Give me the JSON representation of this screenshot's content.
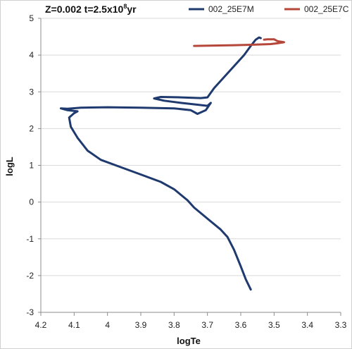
{
  "chart_data": {
    "type": "line",
    "title_main": "Z=0.002 t=2.5x10",
    "title_sup": "8",
    "title_tail": "yr",
    "xlabel": "logTe",
    "ylabel": "logL",
    "xlim": [
      4.2,
      3.3
    ],
    "ylim": [
      -3,
      5
    ],
    "x_reversed": true,
    "xticks": [
      "4.2",
      "4.1",
      "4",
      "3.9",
      "3.8",
      "3.7",
      "3.6",
      "3.5",
      "3.4",
      "3.3"
    ],
    "xtick_values": [
      4.2,
      4.1,
      4.0,
      3.9,
      3.8,
      3.7,
      3.6,
      3.5,
      3.4,
      3.3
    ],
    "yticks": [
      "-3",
      "-2",
      "-1",
      "0",
      "1",
      "2",
      "3",
      "4",
      "5"
    ],
    "ytick_values": [
      -3,
      -2,
      -1,
      0,
      1,
      2,
      3,
      4,
      5
    ],
    "grid": "horizontal",
    "legend_position": "top-right",
    "series": [
      {
        "name": "002_25E7M",
        "color": "#1f3a6e",
        "points": [
          [
            3.57,
            -2.38
          ],
          [
            3.585,
            -2.1
          ],
          [
            3.6,
            -1.75
          ],
          [
            3.62,
            -1.3
          ],
          [
            3.64,
            -0.95
          ],
          [
            3.66,
            -0.75
          ],
          [
            3.7,
            -0.45
          ],
          [
            3.74,
            -0.15
          ],
          [
            3.76,
            0.05
          ],
          [
            3.8,
            0.35
          ],
          [
            3.84,
            0.55
          ],
          [
            3.9,
            0.75
          ],
          [
            3.96,
            0.95
          ],
          [
            4.02,
            1.15
          ],
          [
            4.06,
            1.4
          ],
          [
            4.09,
            1.75
          ],
          [
            4.11,
            2.05
          ],
          [
            4.115,
            2.3
          ],
          [
            4.1,
            2.42
          ],
          [
            4.09,
            2.47
          ],
          [
            4.12,
            2.5
          ],
          [
            4.14,
            2.55
          ],
          [
            4.12,
            2.54
          ],
          [
            4.08,
            2.57
          ],
          [
            4.0,
            2.58
          ],
          [
            3.9,
            2.57
          ],
          [
            3.8,
            2.55
          ],
          [
            3.75,
            2.5
          ],
          [
            3.73,
            2.4
          ],
          [
            3.705,
            2.5
          ],
          [
            3.69,
            2.7
          ],
          [
            3.7,
            2.62
          ],
          [
            3.73,
            2.65
          ],
          [
            3.78,
            2.7
          ],
          [
            3.83,
            2.76
          ],
          [
            3.86,
            2.82
          ],
          [
            3.84,
            2.86
          ],
          [
            3.78,
            2.85
          ],
          [
            3.72,
            2.83
          ],
          [
            3.7,
            2.85
          ],
          [
            3.68,
            3.1
          ],
          [
            3.65,
            3.4
          ],
          [
            3.62,
            3.7
          ],
          [
            3.59,
            4.0
          ],
          [
            3.57,
            4.25
          ],
          [
            3.555,
            4.42
          ],
          [
            3.545,
            4.48
          ],
          [
            3.54,
            4.46
          ]
        ]
      },
      {
        "name": "002_25E7C",
        "color": "#b5473a",
        "points": [
          [
            3.74,
            4.25
          ],
          [
            3.68,
            4.26
          ],
          [
            3.62,
            4.27
          ],
          [
            3.57,
            4.28
          ],
          [
            3.54,
            4.29
          ],
          [
            3.51,
            4.3
          ],
          [
            3.49,
            4.32
          ],
          [
            3.47,
            4.35
          ],
          [
            3.49,
            4.38
          ],
          [
            3.5,
            4.43
          ],
          [
            3.52,
            4.43
          ],
          [
            3.53,
            4.42
          ]
        ]
      }
    ]
  }
}
